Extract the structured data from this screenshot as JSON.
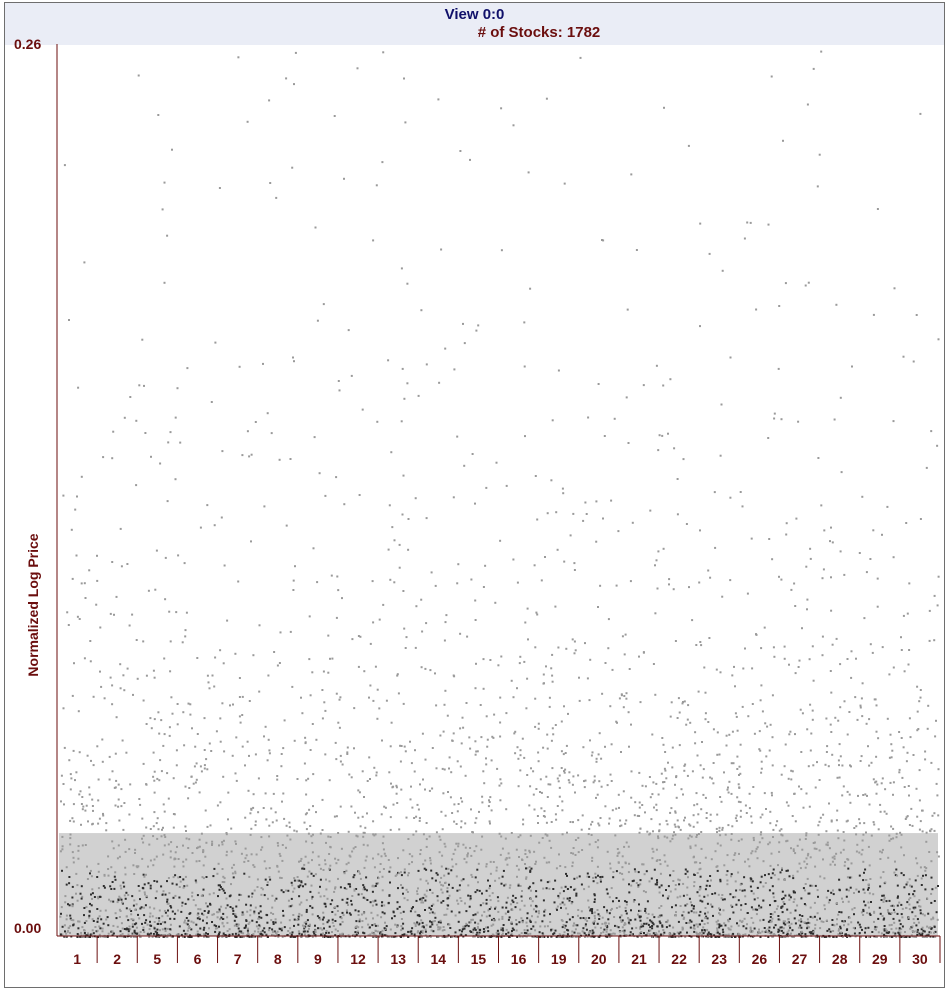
{
  "header": {
    "view_title": "View 0:0",
    "stocks_title": "# of Stocks: 1782"
  },
  "chart_data": {
    "type": "scatter",
    "title": "View 0:0",
    "subtitle": "# of Stocks: 1782",
    "ylabel": "Normalized Log Price",
    "xlabel": "",
    "y_tick_labels": [
      "0.26",
      "0.00"
    ],
    "ylim": [
      0.0,
      0.26
    ],
    "categories": [
      "1",
      "2",
      "5",
      "6",
      "7",
      "8",
      "9",
      "12",
      "13",
      "14",
      "15",
      "16",
      "19",
      "20",
      "21",
      "22",
      "23",
      "26",
      "27",
      "28",
      "29",
      "30"
    ],
    "x_order_note": "",
    "series_count": 1782,
    "density_profile": {
      "y_bins": [
        0.0,
        0.02,
        0.04,
        0.06,
        0.08,
        0.1,
        0.12,
        0.14,
        0.16,
        0.18,
        0.2,
        0.22,
        0.24,
        0.26
      ],
      "relative_density": [
        1.0,
        0.85,
        0.6,
        0.45,
        0.3,
        0.2,
        0.14,
        0.1,
        0.07,
        0.05,
        0.04,
        0.035,
        0.03,
        0.02
      ]
    },
    "colors": {
      "points": "#9a9a9a",
      "dense_core": "#2e2e2e",
      "axis": "#6b0e0e",
      "title_blue": "#10106a",
      "background": "#ffffff",
      "header_band": "#eaedf6"
    },
    "grid": false,
    "legend": "none"
  }
}
